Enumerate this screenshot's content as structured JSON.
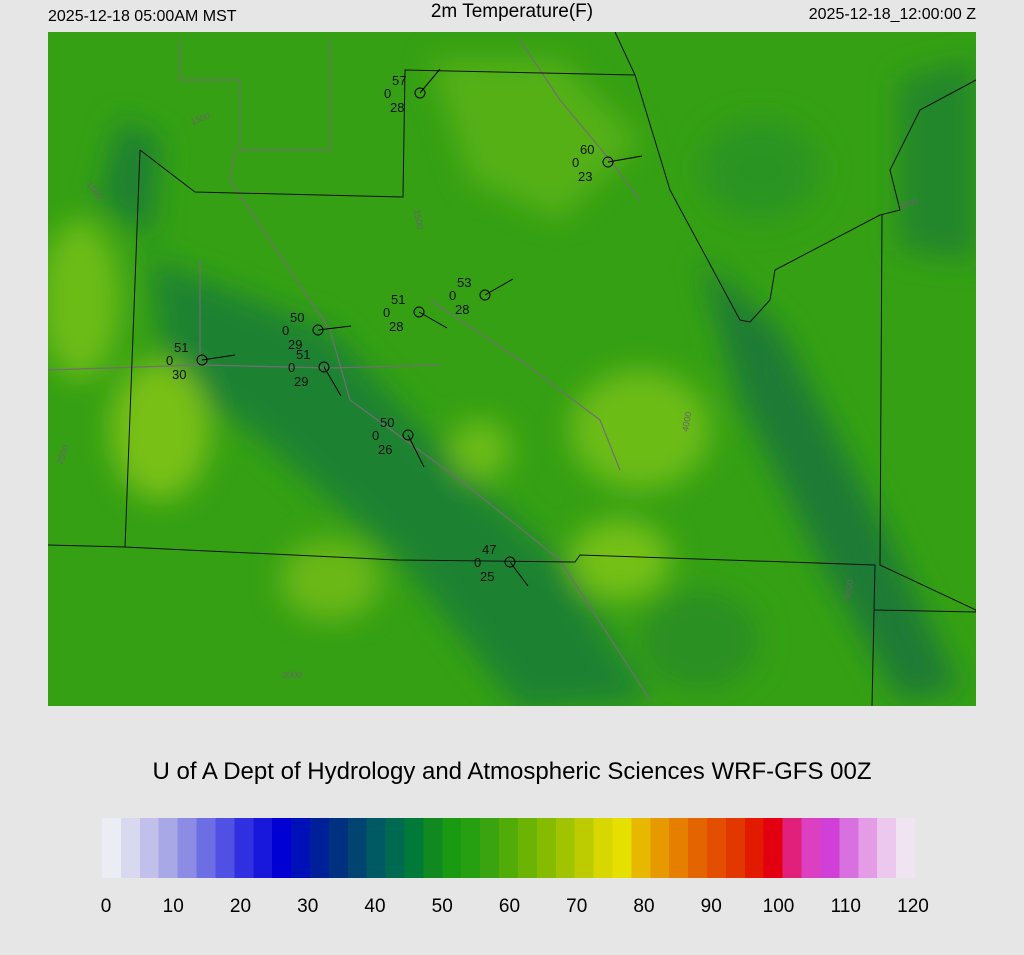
{
  "header": {
    "left": "2025-12-18 05:00AM MST",
    "title": "2m Temperature(F)",
    "right": "2025-12-18_12:00:00 Z"
  },
  "stations": [
    {
      "temp": "57",
      "mid": "0",
      "dew": "28"
    },
    {
      "temp": "60",
      "mid": "0",
      "dew": "23"
    },
    {
      "temp": "53",
      "mid": "0",
      "dew": "28"
    },
    {
      "temp": "51",
      "mid": "0",
      "dew": "28"
    },
    {
      "temp": "50",
      "mid": "0",
      "dew": "29"
    },
    {
      "temp": "51",
      "mid": "0",
      "dew": "30"
    },
    {
      "temp": "51",
      "mid": "0",
      "dew": "29"
    },
    {
      "temp": "50",
      "mid": "0",
      "dew": "26"
    },
    {
      "temp": "47",
      "mid": "0",
      "dew": "25"
    }
  ],
  "contour_labels": [
    "1500",
    "1500",
    "1500",
    "2500",
    "4000",
    "3000",
    "2000",
    "3000"
  ],
  "footer": "U of A Dept of Hydrology and Atmospheric Sciences WRF-GFS 00Z",
  "colorbar": {
    "range": [
      0,
      120
    ],
    "ticks": [
      0,
      10,
      20,
      30,
      40,
      50,
      60,
      70,
      80,
      90,
      100,
      110,
      120
    ],
    "colors": [
      "#ececf4",
      "#d8d8ee",
      "#c0c0ea",
      "#a8a8e6",
      "#8c8ce4",
      "#6e6ee4",
      "#5050e4",
      "#3030e0",
      "#1818dc",
      "#0000d4",
      "#0010b8",
      "#00209a",
      "#003080",
      "#004470",
      "#005a64",
      "#006a50",
      "#007a38",
      "#108a20",
      "#1a9a10",
      "#26a010",
      "#3aa410",
      "#52ac08",
      "#6cb404",
      "#86bc00",
      "#a0c400",
      "#bccc00",
      "#d8d800",
      "#e6e000",
      "#e6b800",
      "#e69a00",
      "#e67e00",
      "#e46400",
      "#e44e00",
      "#e23800",
      "#e21a00",
      "#e20010",
      "#e0207a",
      "#dc40c0",
      "#d040d8",
      "#d870e0",
      "#e49ce6",
      "#ecc8ee",
      "#f0e4f2"
    ]
  }
}
